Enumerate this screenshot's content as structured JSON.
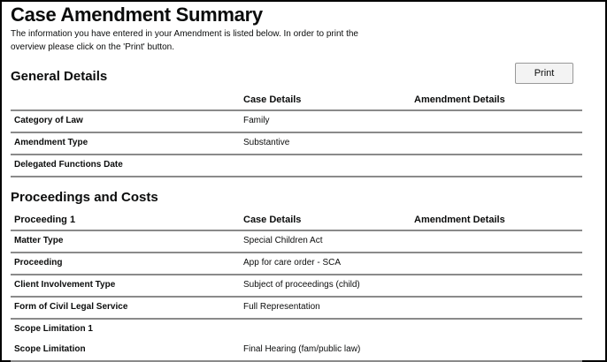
{
  "title": "Case Amendment Summary",
  "intro": "The information you have entered in your Amendment is listed below. In order to print the overview please click on the 'Print' button.",
  "print_label": "Print",
  "general": {
    "heading": "General Details",
    "columns": [
      "",
      "Case Details",
      "Amendment Details"
    ],
    "rows": [
      {
        "label": "Category of Law",
        "case": "Family",
        "amendment": ""
      },
      {
        "label": "Amendment Type",
        "case": "Substantive",
        "amendment": ""
      },
      {
        "label": "Delegated Functions Date",
        "case": "",
        "amendment": ""
      }
    ]
  },
  "proceedings": {
    "heading": "Proceedings and Costs",
    "columns": [
      "Proceeding 1",
      "Case Details",
      "Amendment Details"
    ],
    "rows": [
      {
        "label": "Matter Type",
        "case": "Special Children Act",
        "amendment": ""
      },
      {
        "label": "Proceeding",
        "case": "App for care order - SCA",
        "amendment": ""
      },
      {
        "label": "Client Involvement Type",
        "case": "Subject of proceedings (child)",
        "amendment": ""
      },
      {
        "label": "Form of Civil Legal Service",
        "case": "Full Representation",
        "amendment": ""
      },
      {
        "label": "Scope Limitation 1",
        "case": "",
        "amendment": ""
      },
      {
        "label": "Scope Limitation",
        "case": "Final Hearing (fam/public law)",
        "amendment": ""
      }
    ]
  }
}
